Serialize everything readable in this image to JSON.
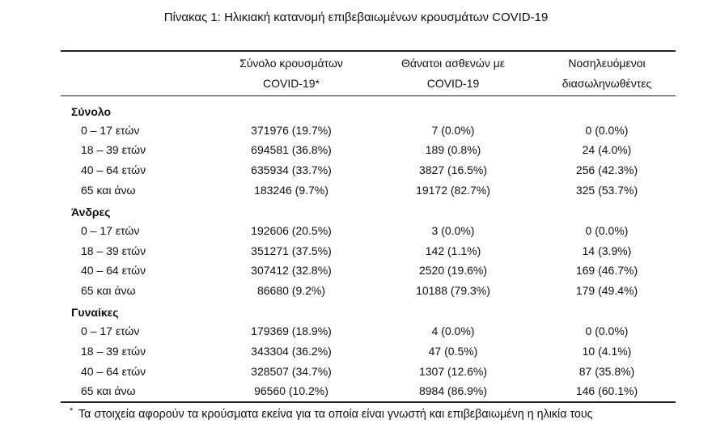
{
  "header": {
    "title": "Πίνακας 1: Ηλικιακή κατανομή επιβεβαιωμένων κρουσμάτων COVID-19"
  },
  "table": {
    "columns": [
      [
        "Σύνολο κρουσμάτων",
        "COVID-19*"
      ],
      [
        "Θάνατοι ασθενών με",
        "COVID-19"
      ],
      [
        "Νοσηλευόμενοι",
        "διασωληνωθέντες"
      ]
    ],
    "groups": [
      {
        "name": "Σύνολο",
        "rows": [
          [
            "0 – 17 ετών",
            "371976 (19.7%)",
            "7 (0.0%)",
            "0 (0.0%)"
          ],
          [
            "18 – 39 ετών",
            "694581 (36.8%)",
            "189 (0.8%)",
            "24 (4.0%)"
          ],
          [
            "40 – 64 ετών",
            "635934 (33.7%)",
            "3827 (16.5%)",
            "256 (42.3%)"
          ],
          [
            "65 και άνω",
            "183246 (9.7%)",
            "19172 (82.7%)",
            "325 (53.7%)"
          ]
        ]
      },
      {
        "name": "Άνδρες",
        "rows": [
          [
            "0 – 17 ετών",
            "192606 (20.5%)",
            "3 (0.0%)",
            "0 (0.0%)"
          ],
          [
            "18 – 39 ετών",
            "351271 (37.5%)",
            "142 (1.1%)",
            "14 (3.9%)"
          ],
          [
            "40 – 64 ετών",
            "307412 (32.8%)",
            "2520 (19.6%)",
            "169 (46.7%)"
          ],
          [
            "65 και άνω",
            "86680 (9.2%)",
            "10188 (79.3%)",
            "179 (49.4%)"
          ]
        ]
      },
      {
        "name": "Γυναίκες",
        "rows": [
          [
            "0 – 17 ετών",
            "179369 (18.9%)",
            "4 (0.0%)",
            "0 (0.0%)"
          ],
          [
            "18 – 39 ετών",
            "343304 (36.2%)",
            "47 (0.5%)",
            "10 (4.1%)"
          ],
          [
            "40 – 64 ετών",
            "328507 (34.7%)",
            "1307 (12.6%)",
            "87 (35.8%)"
          ],
          [
            "65 και άνω",
            "96560 (10.2%)",
            "8984 (86.9%)",
            "146 (60.1%)"
          ]
        ]
      }
    ]
  },
  "footnote": {
    "marker": "*",
    "text": "Τα στοιχεία αφορούν τα κρούσματα εκείνα για τα οποία είναι γνωστή και επιβεβαιωμένη η ηλικία τους"
  }
}
